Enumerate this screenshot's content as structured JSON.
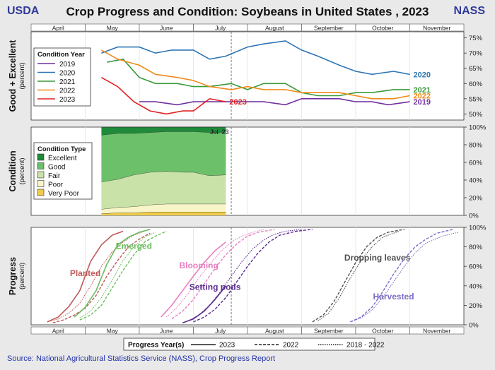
{
  "header": {
    "left": "USDA",
    "title": "Crop Progress and Condition: Soybeans in United States , 2023",
    "right": "NASS"
  },
  "months": [
    "April",
    "May",
    "June",
    "July",
    "August",
    "September",
    "October",
    "November"
  ],
  "source": "Source: National Agricultural Statistics Service (NASS), Crop Progress Report",
  "colors": {
    "y2019": "#7030a0",
    "y2020": "#2e75b6",
    "y2021": "#3a9a3a",
    "y2022": "#f08a1c",
    "y2023": "#e02020"
  },
  "chart_data": [
    {
      "type": "line",
      "ylabel": "Good + Excellent",
      "ylabel2": "(percent)",
      "ylim": [
        48,
        77
      ],
      "yticks": [
        "50%",
        "55%",
        "60%",
        "65%",
        "70%",
        "75%"
      ],
      "legend_title": "Condition Year",
      "series": [
        {
          "name": "2019",
          "end_label": "2019",
          "color": "#7030a0",
          "x": [
            5.0,
            5.3,
            5.7,
            6.0,
            6.3,
            6.7,
            7.0,
            7.3,
            7.7,
            8.0,
            8.3,
            8.7,
            9.0,
            9.3,
            9.6,
            10.0
          ],
          "values": [
            54,
            54,
            53,
            54,
            54,
            54,
            54,
            54,
            53,
            55,
            55,
            55,
            54,
            54,
            53,
            54
          ]
        },
        {
          "name": "2020",
          "end_label": "2020",
          "color": "#2e75b6",
          "x": [
            4.3,
            4.6,
            5.0,
            5.3,
            5.6,
            6.0,
            6.3,
            6.6,
            7.0,
            7.3,
            7.7,
            8.0,
            8.3,
            8.7,
            9.0,
            9.3,
            9.7,
            10.0
          ],
          "values": [
            70,
            72,
            72,
            70,
            71,
            71,
            68,
            69,
            72,
            73,
            74,
            71,
            69,
            66,
            64,
            63,
            64,
            63
          ]
        },
        {
          "name": "2021",
          "end_label": "2021",
          "color": "#3a9a3a",
          "x": [
            4.4,
            4.7,
            5.0,
            5.3,
            5.7,
            6.0,
            6.3,
            6.7,
            7.0,
            7.3,
            7.7,
            8.0,
            8.3,
            8.7,
            9.0,
            9.3,
            9.7,
            10.0
          ],
          "values": [
            67,
            68,
            62,
            60,
            60,
            59,
            59,
            60,
            58,
            60,
            60,
            57,
            56,
            56,
            57,
            57,
            58,
            58
          ]
        },
        {
          "name": "2022",
          "end_label": "2022",
          "color": "#f08a1c",
          "x": [
            4.3,
            4.6,
            5.0,
            5.3,
            5.7,
            6.0,
            6.3,
            6.7,
            7.0,
            7.3,
            7.7,
            8.0,
            8.3,
            8.7,
            9.0,
            9.3,
            9.7,
            10.0
          ],
          "values": [
            71,
            68,
            66,
            63,
            62,
            61,
            59,
            58,
            59,
            58,
            58,
            57,
            57,
            57,
            56,
            55,
            55,
            56
          ]
        },
        {
          "name": "2023",
          "end_label": "2023",
          "color": "#e02020",
          "x": [
            4.3,
            4.6,
            4.9,
            5.2,
            5.5,
            5.8,
            6.0,
            6.3,
            6.6
          ],
          "values": [
            62,
            59,
            54,
            51,
            50,
            51,
            51,
            55,
            54
          ]
        }
      ]
    },
    {
      "type": "area",
      "ylabel": "Condition",
      "ylabel2": "(percent)",
      "ylim": [
        0,
        100
      ],
      "yticks": [
        "0%",
        "20%",
        "40%",
        "60%",
        "80%",
        "100%"
      ],
      "legend_title": "Condition Type",
      "annotation": "Jul. 23",
      "x": [
        4.3,
        4.6,
        4.9,
        5.2,
        5.5,
        5.8,
        6.0,
        6.3,
        6.6
      ],
      "categories": [
        "Excellent",
        "Good",
        "Fair",
        "Poor",
        "Very Poor"
      ],
      "colors": [
        "#1e8a3a",
        "#6cc06a",
        "#c8e2a8",
        "#f8f6c8",
        "#f0cc48"
      ],
      "series": [
        {
          "name": "Very Poor",
          "values": [
            2,
            3,
            3,
            4,
            4,
            4,
            4,
            4,
            4
          ]
        },
        {
          "name": "Poor",
          "values": [
            5,
            6,
            7,
            8,
            9,
            9,
            9,
            9,
            9
          ]
        },
        {
          "name": "Fair",
          "values": [
            31,
            32,
            36,
            37,
            37,
            36,
            36,
            32,
            33
          ]
        },
        {
          "name": "Good",
          "values": [
            53,
            52,
            47,
            45,
            45,
            46,
            46,
            49,
            48
          ]
        },
        {
          "name": "Excellent",
          "values": [
            9,
            7,
            7,
            6,
            5,
            5,
            5,
            6,
            6
          ]
        }
      ]
    },
    {
      "type": "line",
      "ylabel": "Progress",
      "ylabel2": "(percent)",
      "ylim": [
        0,
        100
      ],
      "yticks": [
        "0%",
        "20%",
        "40%",
        "60%",
        "80%",
        "100%"
      ],
      "legend_title": "Progress Year(s)",
      "legend_entries": [
        "2023",
        "2022",
        "2018 - 2022"
      ],
      "stages": [
        {
          "name": "Planted",
          "color": "#c05a5a",
          "s2023": {
            "x": [
              3.3,
              3.5,
              3.7,
              3.9,
              4.1,
              4.3,
              4.5,
              4.7
            ],
            "values": [
              3,
              8,
              19,
              35,
              65,
              82,
              92,
              96
            ]
          },
          "s2022": {
            "x": [
              3.4,
              3.6,
              3.8,
              4.0,
              4.2,
              4.4,
              4.6,
              4.8,
              5.0,
              5.2
            ],
            "values": [
              2,
              5,
              10,
              17,
              30,
              50,
              66,
              80,
              88,
              94
            ]
          },
          "avg": {
            "x": [
              3.3,
              3.5,
              3.7,
              3.9,
              4.1,
              4.3,
              4.5,
              4.7,
              4.9,
              5.1
            ],
            "values": [
              3,
              6,
              12,
              22,
              40,
              60,
              75,
              85,
              92,
              96
            ]
          }
        },
        {
          "name": "Emerged",
          "color": "#6dbd5f",
          "s2023": {
            "x": [
              3.8,
              4.0,
              4.2,
              4.4,
              4.6,
              4.8,
              5.0,
              5.2
            ],
            "values": [
              8,
              18,
              35,
              62,
              82,
              90,
              95,
              98
            ]
          },
          "s2022": {
            "x": [
              3.9,
              4.1,
              4.3,
              4.5,
              4.7,
              4.9,
              5.1,
              5.3,
              5.5
            ],
            "values": [
              5,
              10,
              20,
              38,
              56,
              72,
              85,
              91,
              96
            ]
          },
          "avg": {
            "x": [
              3.9,
              4.1,
              4.3,
              4.5,
              4.7,
              4.9,
              5.1,
              5.3
            ],
            "values": [
              7,
              14,
              28,
              46,
              66,
              80,
              90,
              95
            ]
          }
        },
        {
          "name": "Blooming",
          "color": "#e87fc0",
          "s2023": {
            "x": [
              5.4,
              5.6,
              5.8,
              6.0,
              6.2,
              6.4,
              6.6
            ],
            "values": [
              8,
              20,
              35,
              50,
              64,
              76,
              85
            ]
          },
          "s2022": {
            "x": [
              5.6,
              5.8,
              6.0,
              6.2,
              6.4,
              6.6,
              6.8,
              7.0,
              7.2,
              7.5
            ],
            "values": [
              6,
              14,
              26,
              42,
              58,
              72,
              83,
              91,
              95,
              98
            ]
          },
          "avg": {
            "x": [
              5.5,
              5.7,
              5.9,
              6.1,
              6.3,
              6.5,
              6.7,
              6.9,
              7.1,
              7.3
            ],
            "values": [
              8,
              18,
              32,
              48,
              62,
              75,
              85,
              91,
              95,
              98
            ]
          }
        },
        {
          "name": "Setting pods",
          "color": "#5a2a90",
          "s2023": {
            "x": [
              5.8,
              6.0,
              6.2,
              6.4,
              6.6
            ],
            "values": [
              2,
              6,
              14,
              26,
              40
            ]
          },
          "s2022": {
            "x": [
              6.0,
              6.2,
              6.4,
              6.6,
              6.8,
              7.0,
              7.2,
              7.4,
              7.6,
              7.9,
              8.2
            ],
            "values": [
              3,
              8,
              16,
              28,
              44,
              60,
              74,
              85,
              92,
              96,
              98
            ]
          },
          "avg": {
            "x": [
              5.9,
              6.1,
              6.3,
              6.5,
              6.7,
              6.9,
              7.1,
              7.3,
              7.5,
              7.7,
              8.0
            ],
            "values": [
              4,
              10,
              20,
              34,
              50,
              65,
              78,
              87,
              93,
              96,
              98
            ]
          }
        },
        {
          "name": "Dropping leaves",
          "color": "#505050",
          "s2023": {
            "x": [],
            "values": []
          },
          "s2022": {
            "x": [
              8.2,
              8.4,
              8.6,
              8.8,
              9.0,
              9.2,
              9.4,
              9.6,
              9.9
            ],
            "values": [
              3,
              10,
              24,
              44,
              64,
              80,
              90,
              95,
              98
            ]
          },
          "avg": {
            "x": [
              8.3,
              8.5,
              8.7,
              8.9,
              9.1,
              9.3,
              9.5,
              9.8
            ],
            "values": [
              4,
              12,
              28,
              48,
              66,
              80,
              90,
              96
            ]
          }
        },
        {
          "name": "Harvested",
          "color": "#7b6cc6",
          "s2023": {
            "x": [],
            "values": []
          },
          "s2022": {
            "x": [
              8.9,
              9.1,
              9.3,
              9.5,
              9.7,
              9.9,
              10.1,
              10.3,
              10.5,
              10.8
            ],
            "values": [
              3,
              8,
              18,
              34,
              52,
              68,
              80,
              88,
              94,
              98
            ]
          },
          "avg": {
            "x": [
              8.9,
              9.1,
              9.3,
              9.5,
              9.7,
              9.9,
              10.1,
              10.3,
              10.6,
              10.9
            ],
            "values": [
              3,
              7,
              15,
              28,
              44,
              60,
              74,
              84,
              91,
              95
            ]
          }
        }
      ]
    }
  ]
}
